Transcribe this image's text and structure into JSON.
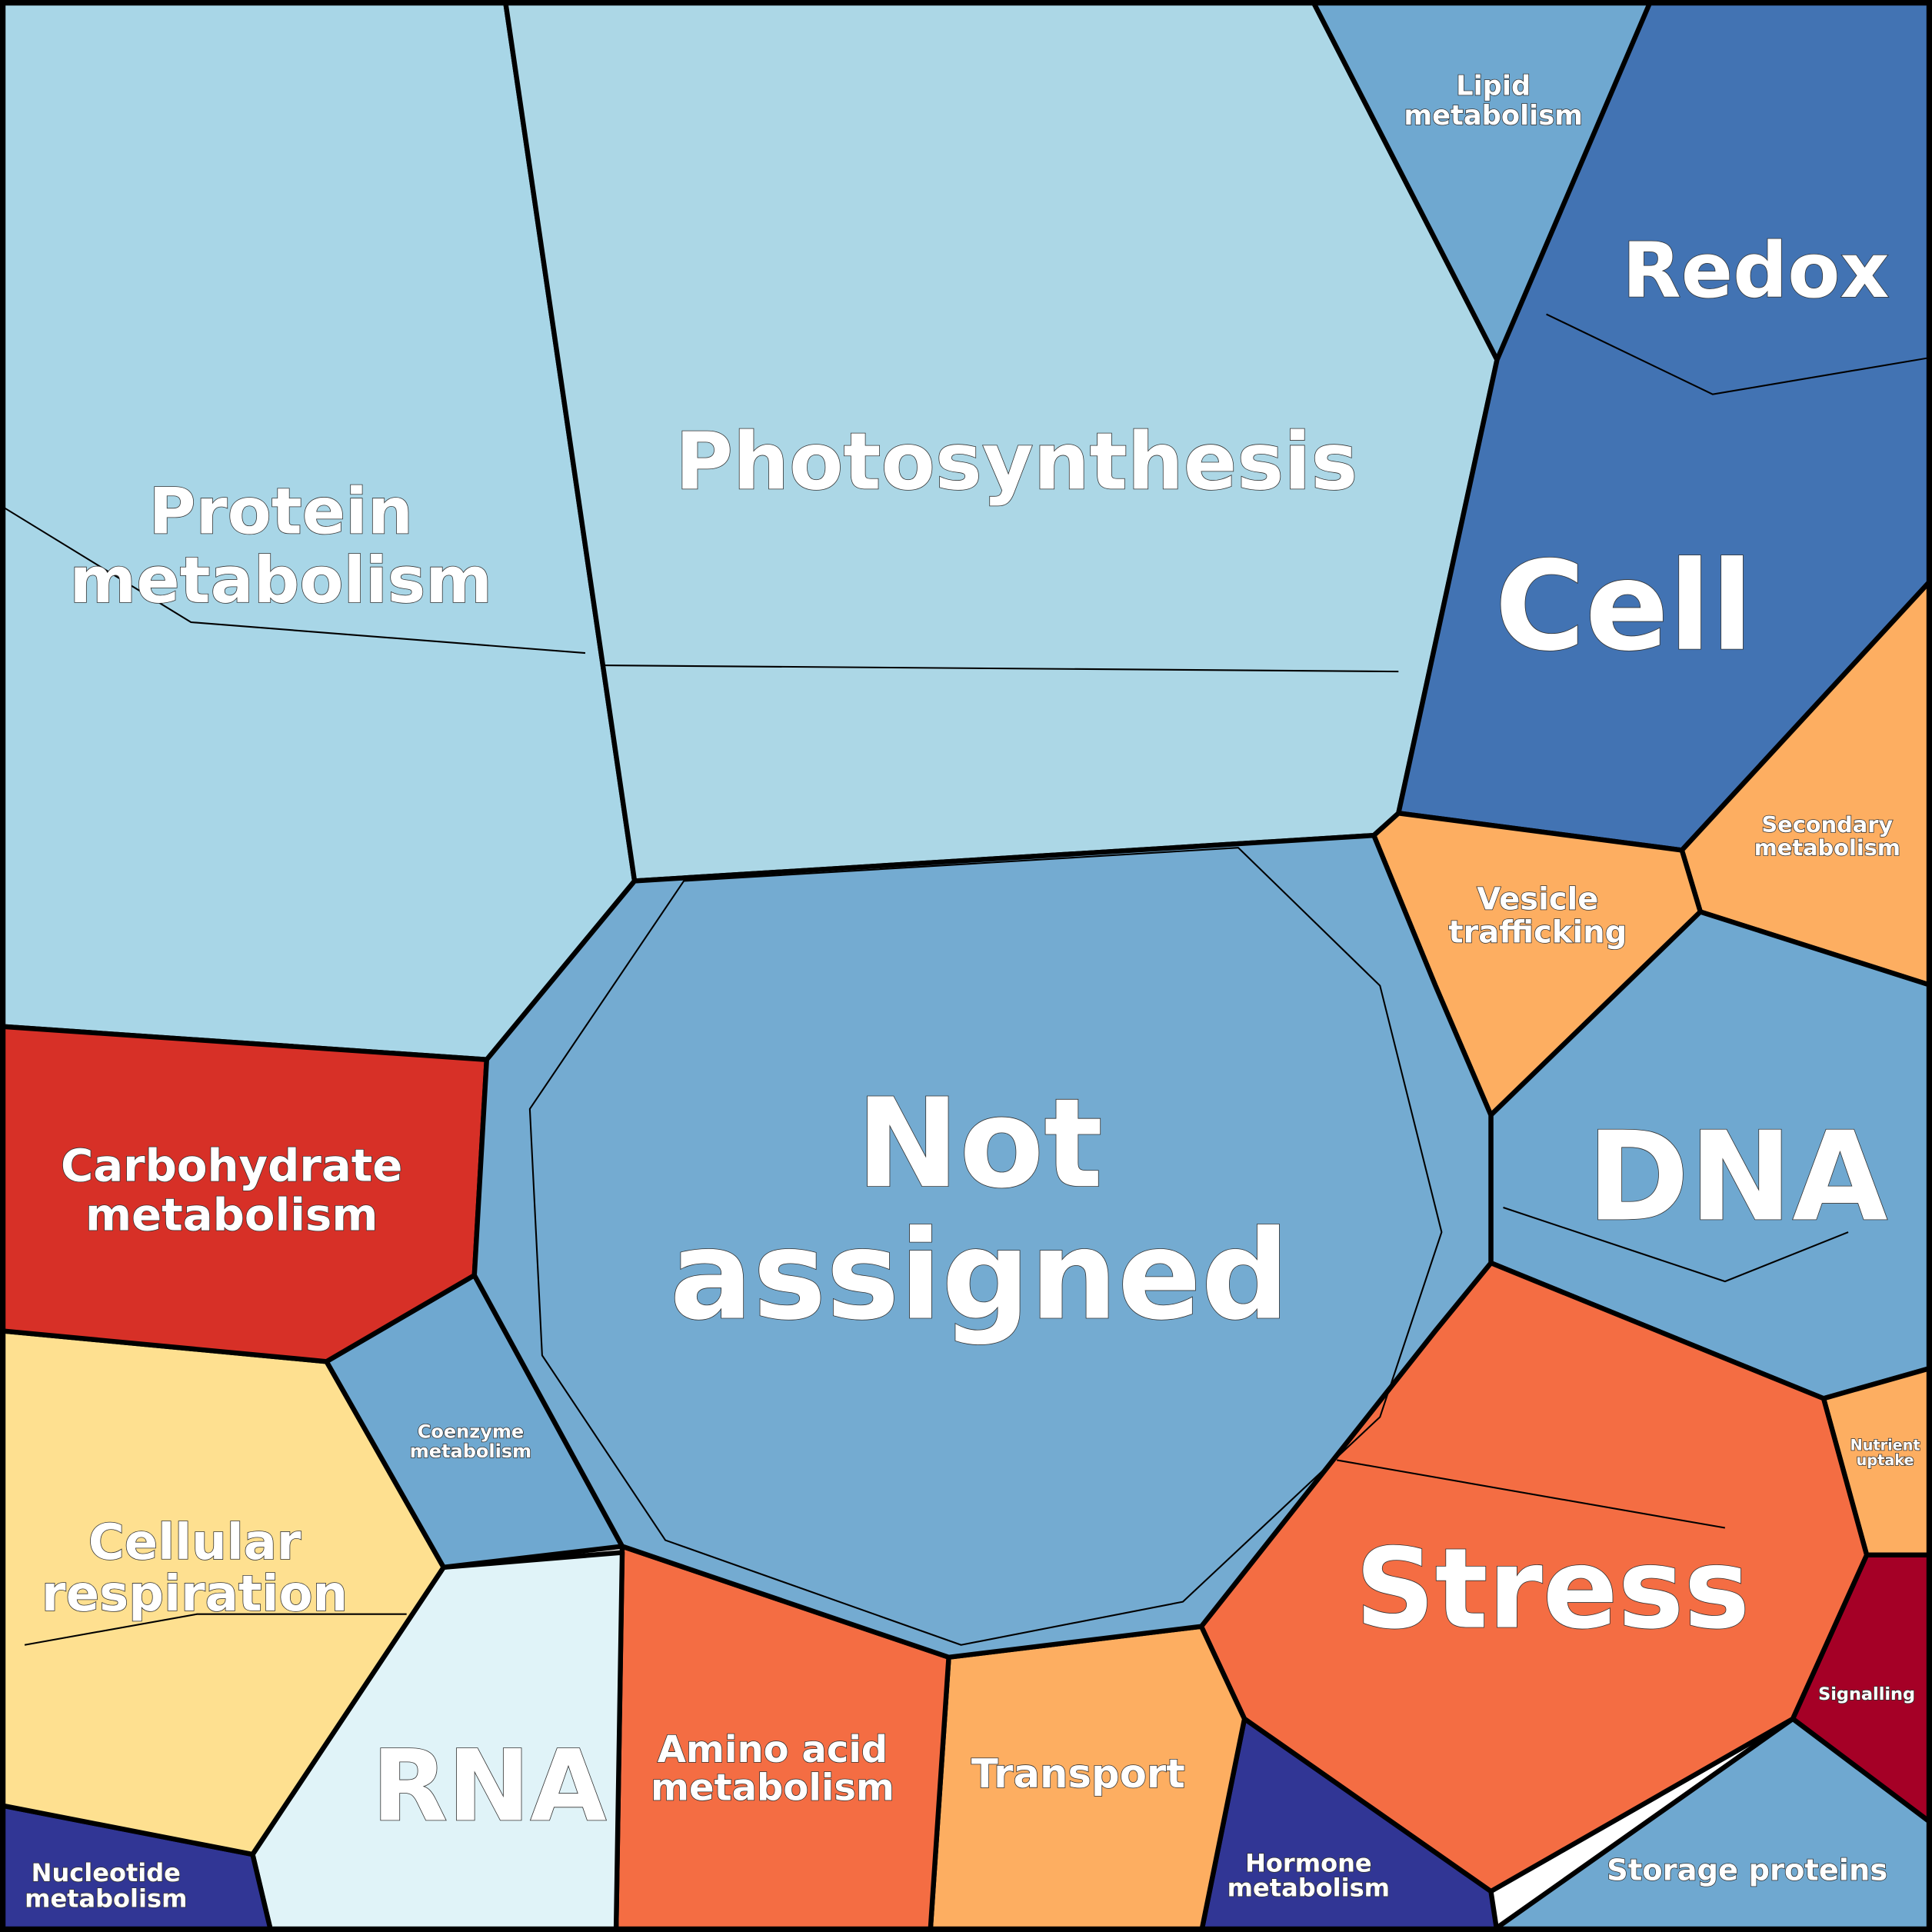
{
  "regions": [
    {
      "lines": [
        "Photosynthesis"
      ]
    },
    {
      "lines": [
        "Protein",
        "metabolism"
      ]
    },
    {
      "lines": [
        "Lipid",
        "metabolism"
      ]
    },
    {
      "lines": [
        "Redox"
      ]
    },
    {
      "lines": [
        "Cell"
      ]
    },
    {
      "lines": [
        "Secondary",
        "metabolism"
      ]
    },
    {
      "lines": [
        "Vesicle",
        "trafficking"
      ]
    },
    {
      "lines": [
        "DNA"
      ]
    },
    {
      "lines": [
        "Not",
        "assigned"
      ]
    },
    {
      "lines": [
        "Carbohydrate",
        "metabolism"
      ]
    },
    {
      "lines": [
        "Nutrient",
        "uptake"
      ]
    },
    {
      "lines": [
        "Stress"
      ]
    },
    {
      "lines": [
        "Signalling"
      ]
    },
    {
      "lines": [
        "Coenzyme",
        "metabolism"
      ]
    },
    {
      "lines": [
        "Cellular",
        "respiration"
      ]
    },
    {
      "lines": [
        "RNA"
      ]
    },
    {
      "lines": [
        "Amino acid",
        "metabolism"
      ]
    },
    {
      "lines": [
        "Transport"
      ]
    },
    {
      "lines": [
        "Hormone",
        "metabolism"
      ]
    },
    {
      "lines": [
        "Storage proteins"
      ]
    },
    {
      "lines": [
        "Nucleotide",
        "metabolism"
      ]
    }
  ]
}
